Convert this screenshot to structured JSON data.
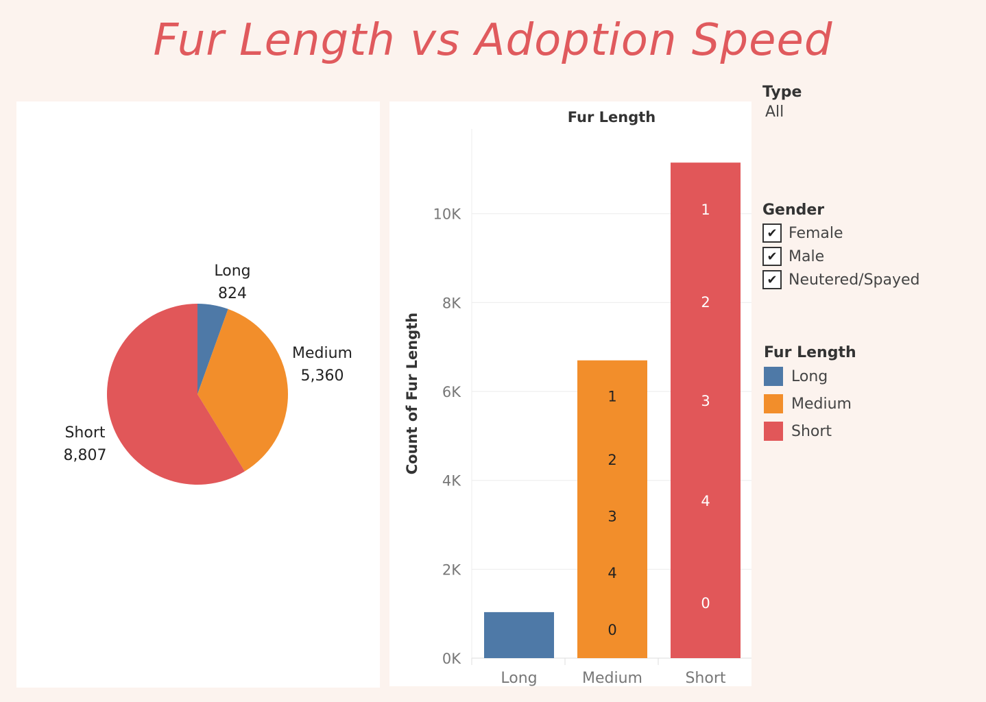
{
  "title": "Fur Length vs Adoption Speed",
  "colors": {
    "Long": "#4e79a7",
    "Medium": "#f28e2b",
    "Short": "#e15759",
    "title": "#e05a5d"
  },
  "chart_data": [
    {
      "type": "pie",
      "labels": [
        "Long",
        "Medium",
        "Short"
      ],
      "values": [
        824,
        5360,
        8807
      ],
      "value_labels": [
        "824",
        "5,360",
        "8,807"
      ]
    },
    {
      "type": "bar",
      "stacked": true,
      "title": "Fur Length",
      "ylabel": "Count of Fur Length",
      "categories": [
        "Long",
        "Medium",
        "Short"
      ],
      "yticks": [
        "0K",
        "2K",
        "4K",
        "6K",
        "8K",
        "10K"
      ],
      "ytick_values": [
        0,
        2000,
        4000,
        6000,
        8000,
        10000
      ],
      "ylim": [
        0,
        11600
      ],
      "totals": [
        1035,
        6700,
        11150
      ],
      "segment_labels": {
        "Long": [],
        "Medium": [
          {
            "label": "0",
            "value": 1300
          },
          {
            "label": "4",
            "value": 1250
          },
          {
            "label": "3",
            "value": 1300
          },
          {
            "label": "2",
            "value": 1250
          },
          {
            "label": "1",
            "value": 1600
          }
        ],
        "Short": [
          {
            "label": "0",
            "value": 2500
          },
          {
            "label": "4",
            "value": 2100
          },
          {
            "label": "3",
            "value": 2400
          },
          {
            "label": "2",
            "value": 2050
          },
          {
            "label": "1",
            "value": 2100
          }
        ]
      }
    }
  ],
  "filters": {
    "type": {
      "title": "Type",
      "value": "All"
    },
    "gender": {
      "title": "Gender",
      "options": [
        "Female",
        "Male",
        "Neutered/Spayed"
      ]
    }
  },
  "legend": {
    "title": "Fur Length",
    "items": [
      "Long",
      "Medium",
      "Short"
    ]
  }
}
